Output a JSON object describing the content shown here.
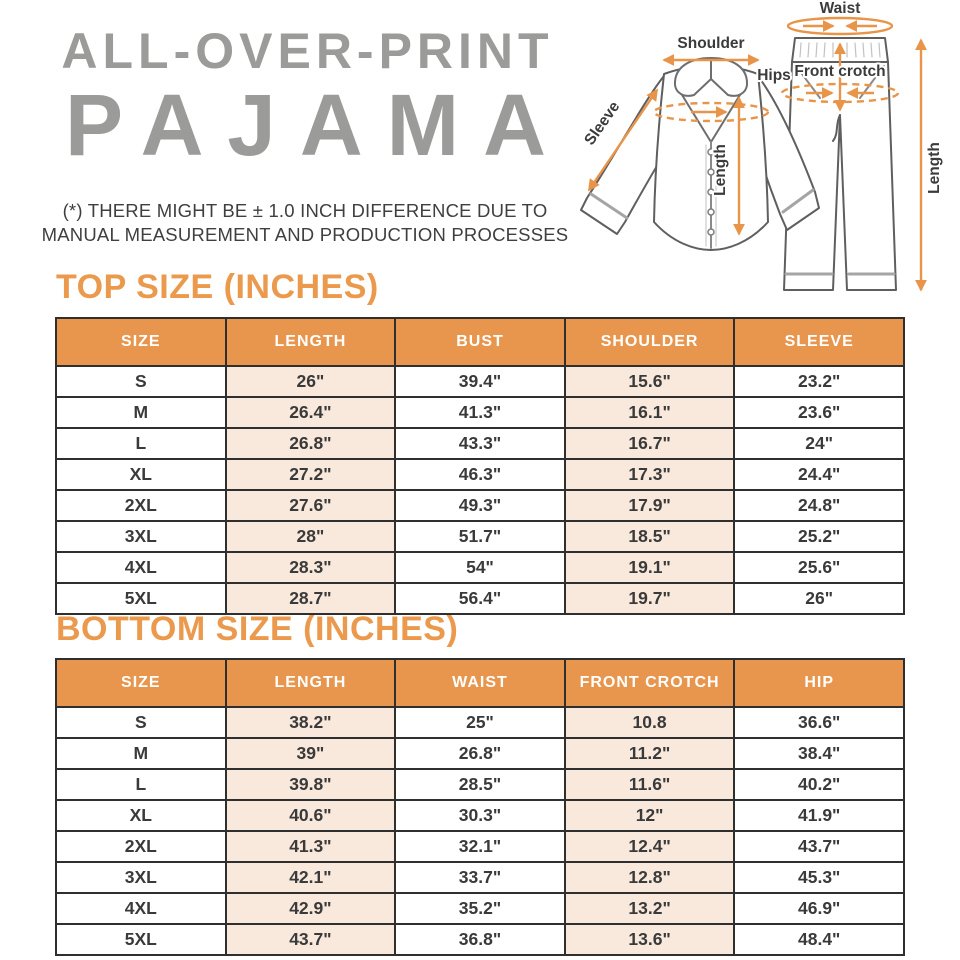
{
  "title": {
    "line1": "ALL-OVER-PRINT",
    "line2": "PAJAMA"
  },
  "disclaimer": {
    "line1": "(*) THERE MIGHT BE ± 1.0 INCH DIFFERENCE DUE TO",
    "line2": "MANUAL MEASUREMENT AND PRODUCTION PROCESSES"
  },
  "diagram": {
    "shoulder": "Shoulder",
    "sleeve": "Sleeve",
    "top_length": "Length",
    "waist": "Waist",
    "hips": "Hips",
    "front_crotch": "Front crotch",
    "bottom_length": "Length"
  },
  "colors": {
    "accent_orange": "#E8964D",
    "heading_orange": "#EB9A4D",
    "arrow_orange": "#E8954A",
    "title_gray": "#9B9B9A",
    "cream_cell": "#F8E9DC",
    "table_border": "#2F2F2F",
    "cell_text": "#3A3A3A"
  },
  "chart_data": [
    {
      "type": "table",
      "title": "TOP SIZE (INCHES)",
      "columns": [
        "SIZE",
        "LENGTH",
        "BUST",
        "SHOULDER",
        "SLEEVE"
      ],
      "cream_columns": [
        1,
        3
      ],
      "rows": [
        [
          "S",
          "26\"",
          "39.4\"",
          "15.6\"",
          "23.2\""
        ],
        [
          "M",
          "26.4\"",
          "41.3\"",
          "16.1\"",
          "23.6\""
        ],
        [
          "L",
          "26.8\"",
          "43.3\"",
          "16.7\"",
          "24\""
        ],
        [
          "XL",
          "27.2\"",
          "46.3\"",
          "17.3\"",
          "24.4\""
        ],
        [
          "2XL",
          "27.6\"",
          "49.3\"",
          "17.9\"",
          "24.8\""
        ],
        [
          "3XL",
          "28\"",
          "51.7\"",
          "18.5\"",
          "25.2\""
        ],
        [
          "4XL",
          "28.3\"",
          "54\"",
          "19.1\"",
          "25.6\""
        ],
        [
          "5XL",
          "28.7\"",
          "56.4\"",
          "19.7\"",
          "26\""
        ]
      ]
    },
    {
      "type": "table",
      "title": "BOTTOM SIZE (INCHES)",
      "columns": [
        "SIZE",
        "LENGTH",
        "WAIST",
        "FRONT CROTCH",
        "HIP"
      ],
      "cream_columns": [
        1,
        3
      ],
      "rows": [
        [
          "S",
          "38.2\"",
          "25\"",
          "10.8",
          "36.6\""
        ],
        [
          "M",
          "39\"",
          "26.8\"",
          "11.2\"",
          "38.4\""
        ],
        [
          "L",
          "39.8\"",
          "28.5\"",
          "11.6\"",
          "40.2\""
        ],
        [
          "XL",
          "40.6\"",
          "30.3\"",
          "12\"",
          "41.9\""
        ],
        [
          "2XL",
          "41.3\"",
          "32.1\"",
          "12.4\"",
          "43.7\""
        ],
        [
          "3XL",
          "42.1\"",
          "33.7\"",
          "12.8\"",
          "45.3\""
        ],
        [
          "4XL",
          "42.9\"",
          "35.2\"",
          "13.2\"",
          "46.9\""
        ],
        [
          "5XL",
          "43.7\"",
          "36.8\"",
          "13.6\"",
          "48.4\""
        ]
      ]
    }
  ]
}
